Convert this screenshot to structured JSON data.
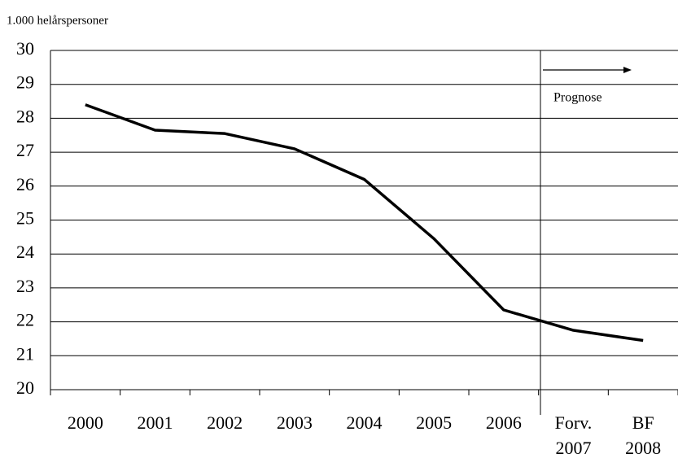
{
  "chart_data": {
    "type": "line",
    "y_axis_label": "1.000 helårspersoner",
    "annotation": "Prognose",
    "categories": [
      "2000",
      "2001",
      "2002",
      "2003",
      "2004",
      "2005",
      "2006",
      "Forv. 2007",
      "BF 2008"
    ],
    "values": [
      28.4,
      27.65,
      27.55,
      27.1,
      26.2,
      24.45,
      22.35,
      21.75,
      21.45
    ],
    "color": "#000000",
    "ylim": [
      20,
      30
    ],
    "yticks": [
      20,
      21,
      22,
      23,
      24,
      25,
      26,
      27,
      28,
      29,
      30
    ],
    "grid": true
  }
}
